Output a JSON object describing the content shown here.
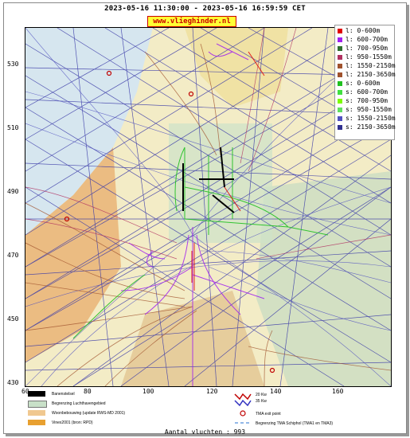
{
  "header": {
    "title": "2023-05-16 11:30:00 - 2023-05-16 16:59:59 CET",
    "site": "www.vlieghinder.nl"
  },
  "axes": {
    "y_ticks": [
      "530",
      "510",
      "490",
      "470",
      "450",
      "430"
    ],
    "x_ticks": [
      "60",
      "80",
      "100",
      "120",
      "140",
      "160"
    ]
  },
  "legend": {
    "entries": [
      {
        "label": "l: 0-600m",
        "color": "#e00000"
      },
      {
        "label": "l: 600-700m",
        "color": "#a020f0"
      },
      {
        "label": "l: 700-950m",
        "color": "#2f6e2f"
      },
      {
        "label": "l: 950-1550m",
        "color": "#b03060"
      },
      {
        "label": "l: 1550-2150m",
        "color": "#a0522d"
      },
      {
        "label": "l: 2150-3650m",
        "color": "#a0522d"
      },
      {
        "label": "s: 0-600m",
        "color": "#20c020"
      },
      {
        "label": "s: 600-700m",
        "color": "#40e040"
      },
      {
        "label": "s: 700-950m",
        "color": "#7cfc00"
      },
      {
        "label": "s: 950-1550m",
        "color": "#60e060"
      },
      {
        "label": "s: 1550-2150m",
        "color": "#5050c0"
      },
      {
        "label": "s: 2150-3650m",
        "color": "#303090"
      }
    ]
  },
  "footer": {
    "items": [
      {
        "label": "Banenstelsel",
        "color": "#000000"
      },
      {
        "label": "Begrenzing Luchthavengebied",
        "color": "#c8e0c8"
      },
      {
        "label": "Woonbebouwing (update RWS-MD 2001)",
        "color": "#f0c890"
      },
      {
        "label": "Vinex2001 (bron: RPD)",
        "color": "#e8a030"
      }
    ],
    "kw20": "20 Kw",
    "kw35": "35 Kw",
    "tma_exit": "TMA exit point",
    "tma_border": "Begrenzing TMA Schiphol  (TMA1 en TMA3)"
  },
  "flights_count": "Aantal vluchten : 993"
}
